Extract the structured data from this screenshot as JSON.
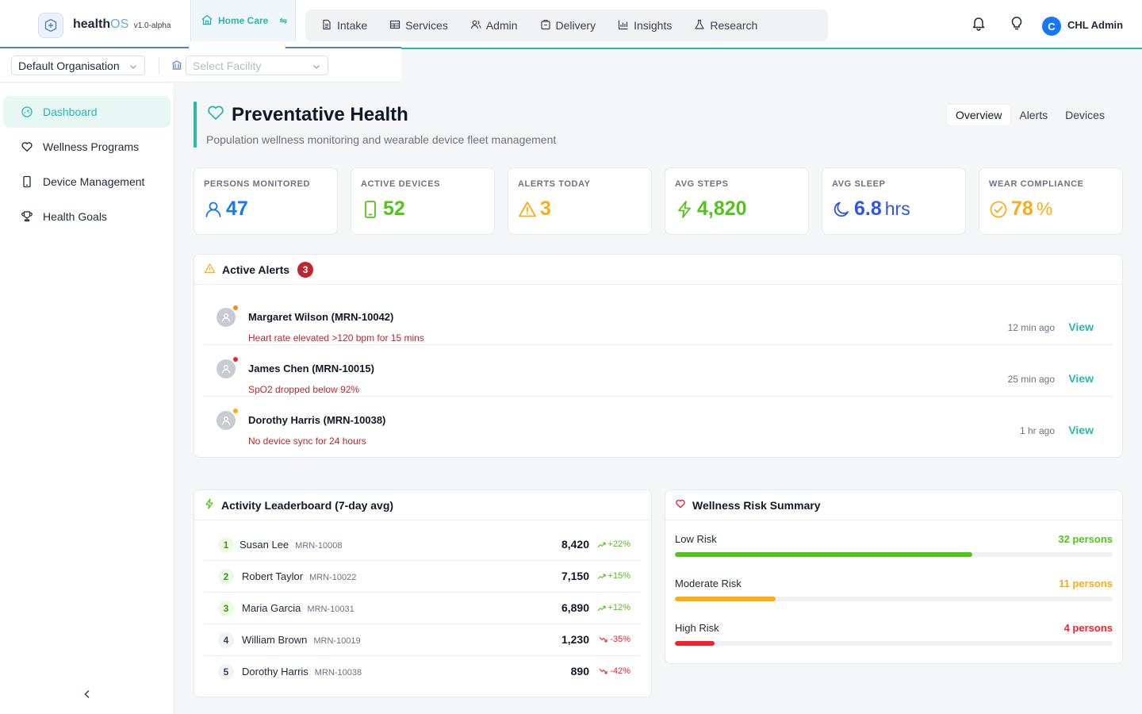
{
  "app": {
    "name": "health",
    "name_suffix": "OS",
    "version": "v1.0-alpha"
  },
  "module_switch": {
    "label": "Home Care"
  },
  "nav": {
    "items": [
      {
        "label": "Intake",
        "icon": "document-icon"
      },
      {
        "label": "Services",
        "icon": "grid-icon"
      },
      {
        "label": "Admin",
        "icon": "users-icon"
      },
      {
        "label": "Delivery",
        "icon": "package-icon"
      },
      {
        "label": "Insights",
        "icon": "bar-chart-icon"
      },
      {
        "label": "Research",
        "icon": "flask-icon"
      }
    ]
  },
  "user": {
    "initial": "C",
    "name": "CHL Admin"
  },
  "filters": {
    "organisation": "Default Organisation",
    "facility_placeholder": "Select Facility"
  },
  "sidebar": {
    "items": [
      {
        "label": "Dashboard",
        "icon": "dashboard-icon",
        "active": true
      },
      {
        "label": "Wellness Programs",
        "icon": "heart-icon",
        "active": false
      },
      {
        "label": "Device Management",
        "icon": "phone-icon",
        "active": false
      },
      {
        "label": "Health Goals",
        "icon": "trophy-icon",
        "active": false
      }
    ]
  },
  "page": {
    "title": "Preventative Health",
    "subtitle": "Population wellness monitoring and wearable device fleet management",
    "tabs": [
      {
        "label": "Overview",
        "active": true
      },
      {
        "label": "Alerts",
        "active": false
      },
      {
        "label": "Devices",
        "active": false
      }
    ]
  },
  "stats": [
    {
      "label": "PERSONS MONITORED",
      "value": "47",
      "unit": "",
      "color": "#1677ff",
      "icon": "user-icon"
    },
    {
      "label": "ACTIVE DEVICES",
      "value": "52",
      "unit": "",
      "color": "#52c41a",
      "icon": "phone-icon"
    },
    {
      "label": "ALERTS TODAY",
      "value": "3",
      "unit": "",
      "color": "#faad14",
      "icon": "warning-icon"
    },
    {
      "label": "AVG STEPS",
      "value": "4,820",
      "unit": "",
      "color": "#52c41a",
      "icon": "bolt-icon"
    },
    {
      "label": "AVG SLEEP",
      "value": "6.8",
      "unit": "hrs",
      "color": "#2f54eb",
      "icon": "moon-icon"
    },
    {
      "label": "WEAR COMPLIANCE",
      "value": "78",
      "unit": "%",
      "color": "#faad14",
      "icon": "check-circle-icon"
    }
  ],
  "alerts": {
    "title": "Active Alerts",
    "count": "3",
    "items": [
      {
        "name": "Margaret Wilson (MRN-10042)",
        "message": "Heart rate elevated >120 bpm for 15 mins",
        "time": "12 min ago",
        "action": "View",
        "dot_color": "#fa8c16"
      },
      {
        "name": "James Chen (MRN-10015)",
        "message": "SpO2 dropped below 92%",
        "time": "25 min ago",
        "action": "View",
        "dot_color": "#f5222d"
      },
      {
        "name": "Dorothy Harris (MRN-10038)",
        "message": "No device sync for 24 hours",
        "time": "1 hr ago",
        "action": "View",
        "dot_color": "#faad14"
      }
    ]
  },
  "leaderboard": {
    "title": "Activity Leaderboard (7-day avg)",
    "items": [
      {
        "rank": "1",
        "name": "Susan Lee",
        "mrn": "MRN-10008",
        "value": "8,420",
        "trend": "+22%",
        "up": true
      },
      {
        "rank": "2",
        "name": "Robert Taylor",
        "mrn": "MRN-10022",
        "value": "7,150",
        "trend": "+15%",
        "up": true
      },
      {
        "rank": "3",
        "name": "Maria Garcia",
        "mrn": "MRN-10031",
        "value": "6,890",
        "trend": "+12%",
        "up": true
      },
      {
        "rank": "4",
        "name": "William Brown",
        "mrn": "MRN-10019",
        "value": "1,230",
        "trend": "-35%",
        "up": false
      },
      {
        "rank": "5",
        "name": "Dorothy Harris",
        "mrn": "MRN-10038",
        "value": "890",
        "trend": "-42%",
        "up": false
      }
    ]
  },
  "risk": {
    "title": "Wellness Risk Summary",
    "items": [
      {
        "label": "Low Risk",
        "count": "32 persons",
        "fraction": 0.68,
        "color": "#52c41a"
      },
      {
        "label": "Moderate Risk",
        "count": "11 persons",
        "fraction": 0.23,
        "color": "#faad14"
      },
      {
        "label": "High Risk",
        "count": "4 persons",
        "fraction": 0.09,
        "color": "#f5222d"
      }
    ]
  }
}
